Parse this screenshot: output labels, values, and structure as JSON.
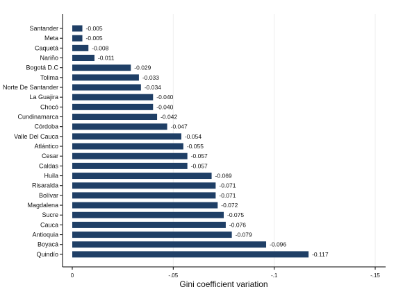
{
  "chart_data": {
    "type": "bar",
    "orientation": "horizontal",
    "title": "",
    "xlabel": "Gini coefficient variation",
    "ylabel": "",
    "xlim": [
      0,
      -0.15
    ],
    "xticks": [
      0,
      -0.05,
      -0.1,
      -0.15
    ],
    "xtick_labels": [
      "0",
      "-.05",
      "-.1",
      "-.15"
    ],
    "grid": "vertical",
    "bar_color": "#1f3f66",
    "categories": [
      "Santander",
      "Meta",
      "Caquetá",
      "Nariño",
      "Bogotá D.C",
      "Tolima",
      "Norte De Santander",
      "La Guajira",
      "Chocó",
      "Cundinamarca",
      "Córdoba",
      "Valle Del Cauca",
      "Atlántico",
      "Cesar",
      "Caldas",
      "Huila",
      "Risaralda",
      "Bolívar",
      "Magdalena",
      "Sucre",
      "Cauca",
      "Antioquia",
      "Boyacá",
      "Quindío"
    ],
    "values": [
      -0.005,
      -0.005,
      -0.008,
      -0.011,
      -0.029,
      -0.033,
      -0.034,
      -0.04,
      -0.04,
      -0.042,
      -0.047,
      -0.054,
      -0.055,
      -0.057,
      -0.057,
      -0.069,
      -0.071,
      -0.071,
      -0.072,
      -0.075,
      -0.076,
      -0.079,
      -0.096,
      -0.117
    ],
    "value_labels": [
      "-0.005",
      "-0.005",
      "-0.008",
      "-0.011",
      "-0.029",
      "-0.033",
      "-0.034",
      "-0.040",
      "-0.040",
      "-0.042",
      "-0.047",
      "-0.054",
      "-0.055",
      "-0.057",
      "-0.057",
      "-0.069",
      "-0.071",
      "-0.071",
      "-0.072",
      "-0.075",
      "-0.076",
      "-0.079",
      "-0.096",
      "-0.117"
    ]
  }
}
